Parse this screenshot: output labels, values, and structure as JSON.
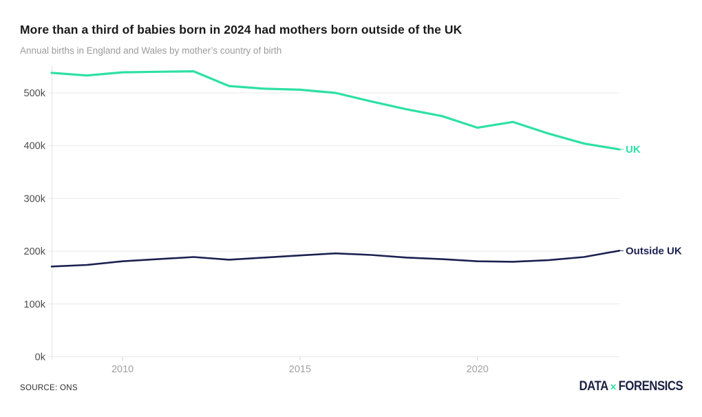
{
  "header": {
    "title": "More than a third of babies born in 2024 had mothers born outside of the UK",
    "subtitle": "Annual births in England and Wales by mother’s country of birth"
  },
  "chart_data": {
    "type": "line",
    "title": "More than a third of babies born in 2024 had mothers born outside of the UK",
    "subtitle": "Annual births in England and Wales by mother’s country of birth",
    "x": [
      2008,
      2009,
      2010,
      2011,
      2012,
      2013,
      2014,
      2015,
      2016,
      2017,
      2018,
      2019,
      2020,
      2021,
      2022,
      2023,
      2024
    ],
    "series": [
      {
        "name": "UK",
        "color": "#2de0a5",
        "values_thousands": [
          538,
          533,
          539,
          540,
          541,
          513,
          508,
          506,
          500,
          484,
          469,
          456,
          434,
          445,
          423,
          404,
          393
        ]
      },
      {
        "name": "Outside UK",
        "color": "#1a2150",
        "values_thousands": [
          171,
          174,
          181,
          185,
          189,
          184,
          188,
          192,
          196,
          193,
          188,
          185,
          181,
          180,
          183,
          189,
          201
        ]
      }
    ],
    "units": "thousands of births",
    "xlabel": "",
    "ylabel": "",
    "xlim": [
      2008,
      2024
    ],
    "ylim": [
      0,
      550
    ],
    "yticks": {
      "values": [
        0,
        100,
        200,
        300,
        400,
        500
      ],
      "labels": [
        "0k",
        "100k",
        "200k",
        "300k",
        "400k",
        "500k"
      ]
    },
    "xticks": {
      "values": [
        2010,
        2015,
        2020
      ],
      "labels": [
        "2010",
        "2015",
        "2020"
      ]
    },
    "grid": "horizontal",
    "legend": "line-end-labels"
  },
  "footer": {
    "source": "SOURCE: ONS",
    "logo": {
      "word1": "DATA",
      "mark": "✕",
      "word2": "FORENSICS"
    }
  },
  "colors": {
    "uk_line": "#2de0a5",
    "outside_uk_line": "#1a2150",
    "grid": "#e8e8e8",
    "axis_line": "#e3e3e3",
    "y_tick_label": "#4d4d4d",
    "x_tick_label": "#a0a0a0",
    "title_text": "#1a1a1a",
    "subtitle_text": "#9b9b9b",
    "logo_navy": "#1b2142"
  }
}
